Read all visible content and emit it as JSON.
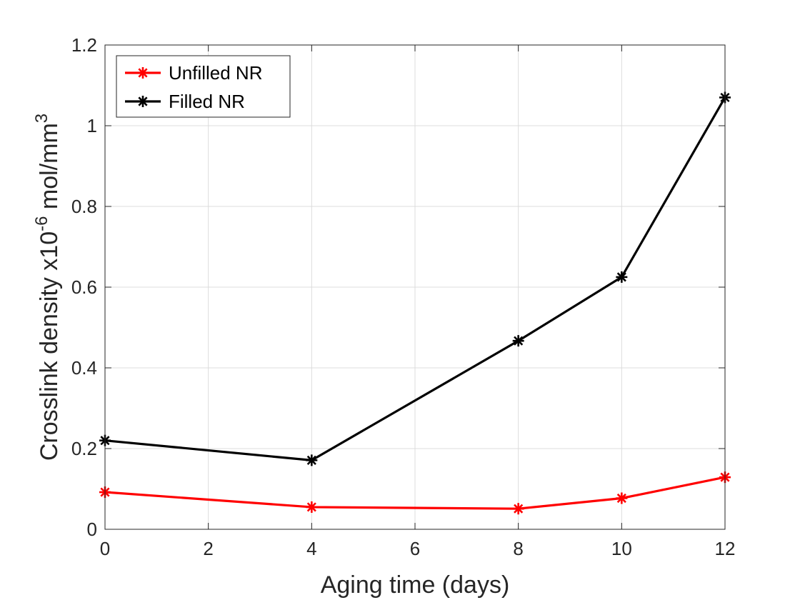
{
  "chart_data": {
    "type": "line",
    "title": "",
    "xlabel": "Aging time (days)",
    "ylabel_main": "Crosslink density x10",
    "ylabel_exp": "-6",
    "ylabel_unit": " mol/mm",
    "ylabel_unit_exp": "3",
    "xlim": [
      0,
      12
    ],
    "ylim": [
      0,
      1.2
    ],
    "xticks": [
      0,
      2,
      4,
      6,
      8,
      10,
      12
    ],
    "xtick_labels": [
      "0",
      "2",
      "4",
      "6",
      "8",
      "10",
      "12"
    ],
    "yticks": [
      0,
      0.2,
      0.4,
      0.6,
      0.8,
      1.0,
      1.2
    ],
    "ytick_labels": [
      "0",
      "0.2",
      "0.4",
      "0.6",
      "0.8",
      "1",
      "1.2"
    ],
    "grid": true,
    "legend_position": "top-left",
    "series": [
      {
        "name": "Unfilled NR",
        "color": "#ff0000",
        "marker": "asterisk",
        "x": [
          0,
          4,
          8,
          10,
          12
        ],
        "y": [
          0.092,
          0.055,
          0.051,
          0.077,
          0.129
        ]
      },
      {
        "name": "Filled NR",
        "color": "#000000",
        "marker": "asterisk",
        "x": [
          0,
          4,
          8,
          10,
          12
        ],
        "y": [
          0.22,
          0.171,
          0.467,
          0.625,
          1.07
        ]
      }
    ]
  }
}
